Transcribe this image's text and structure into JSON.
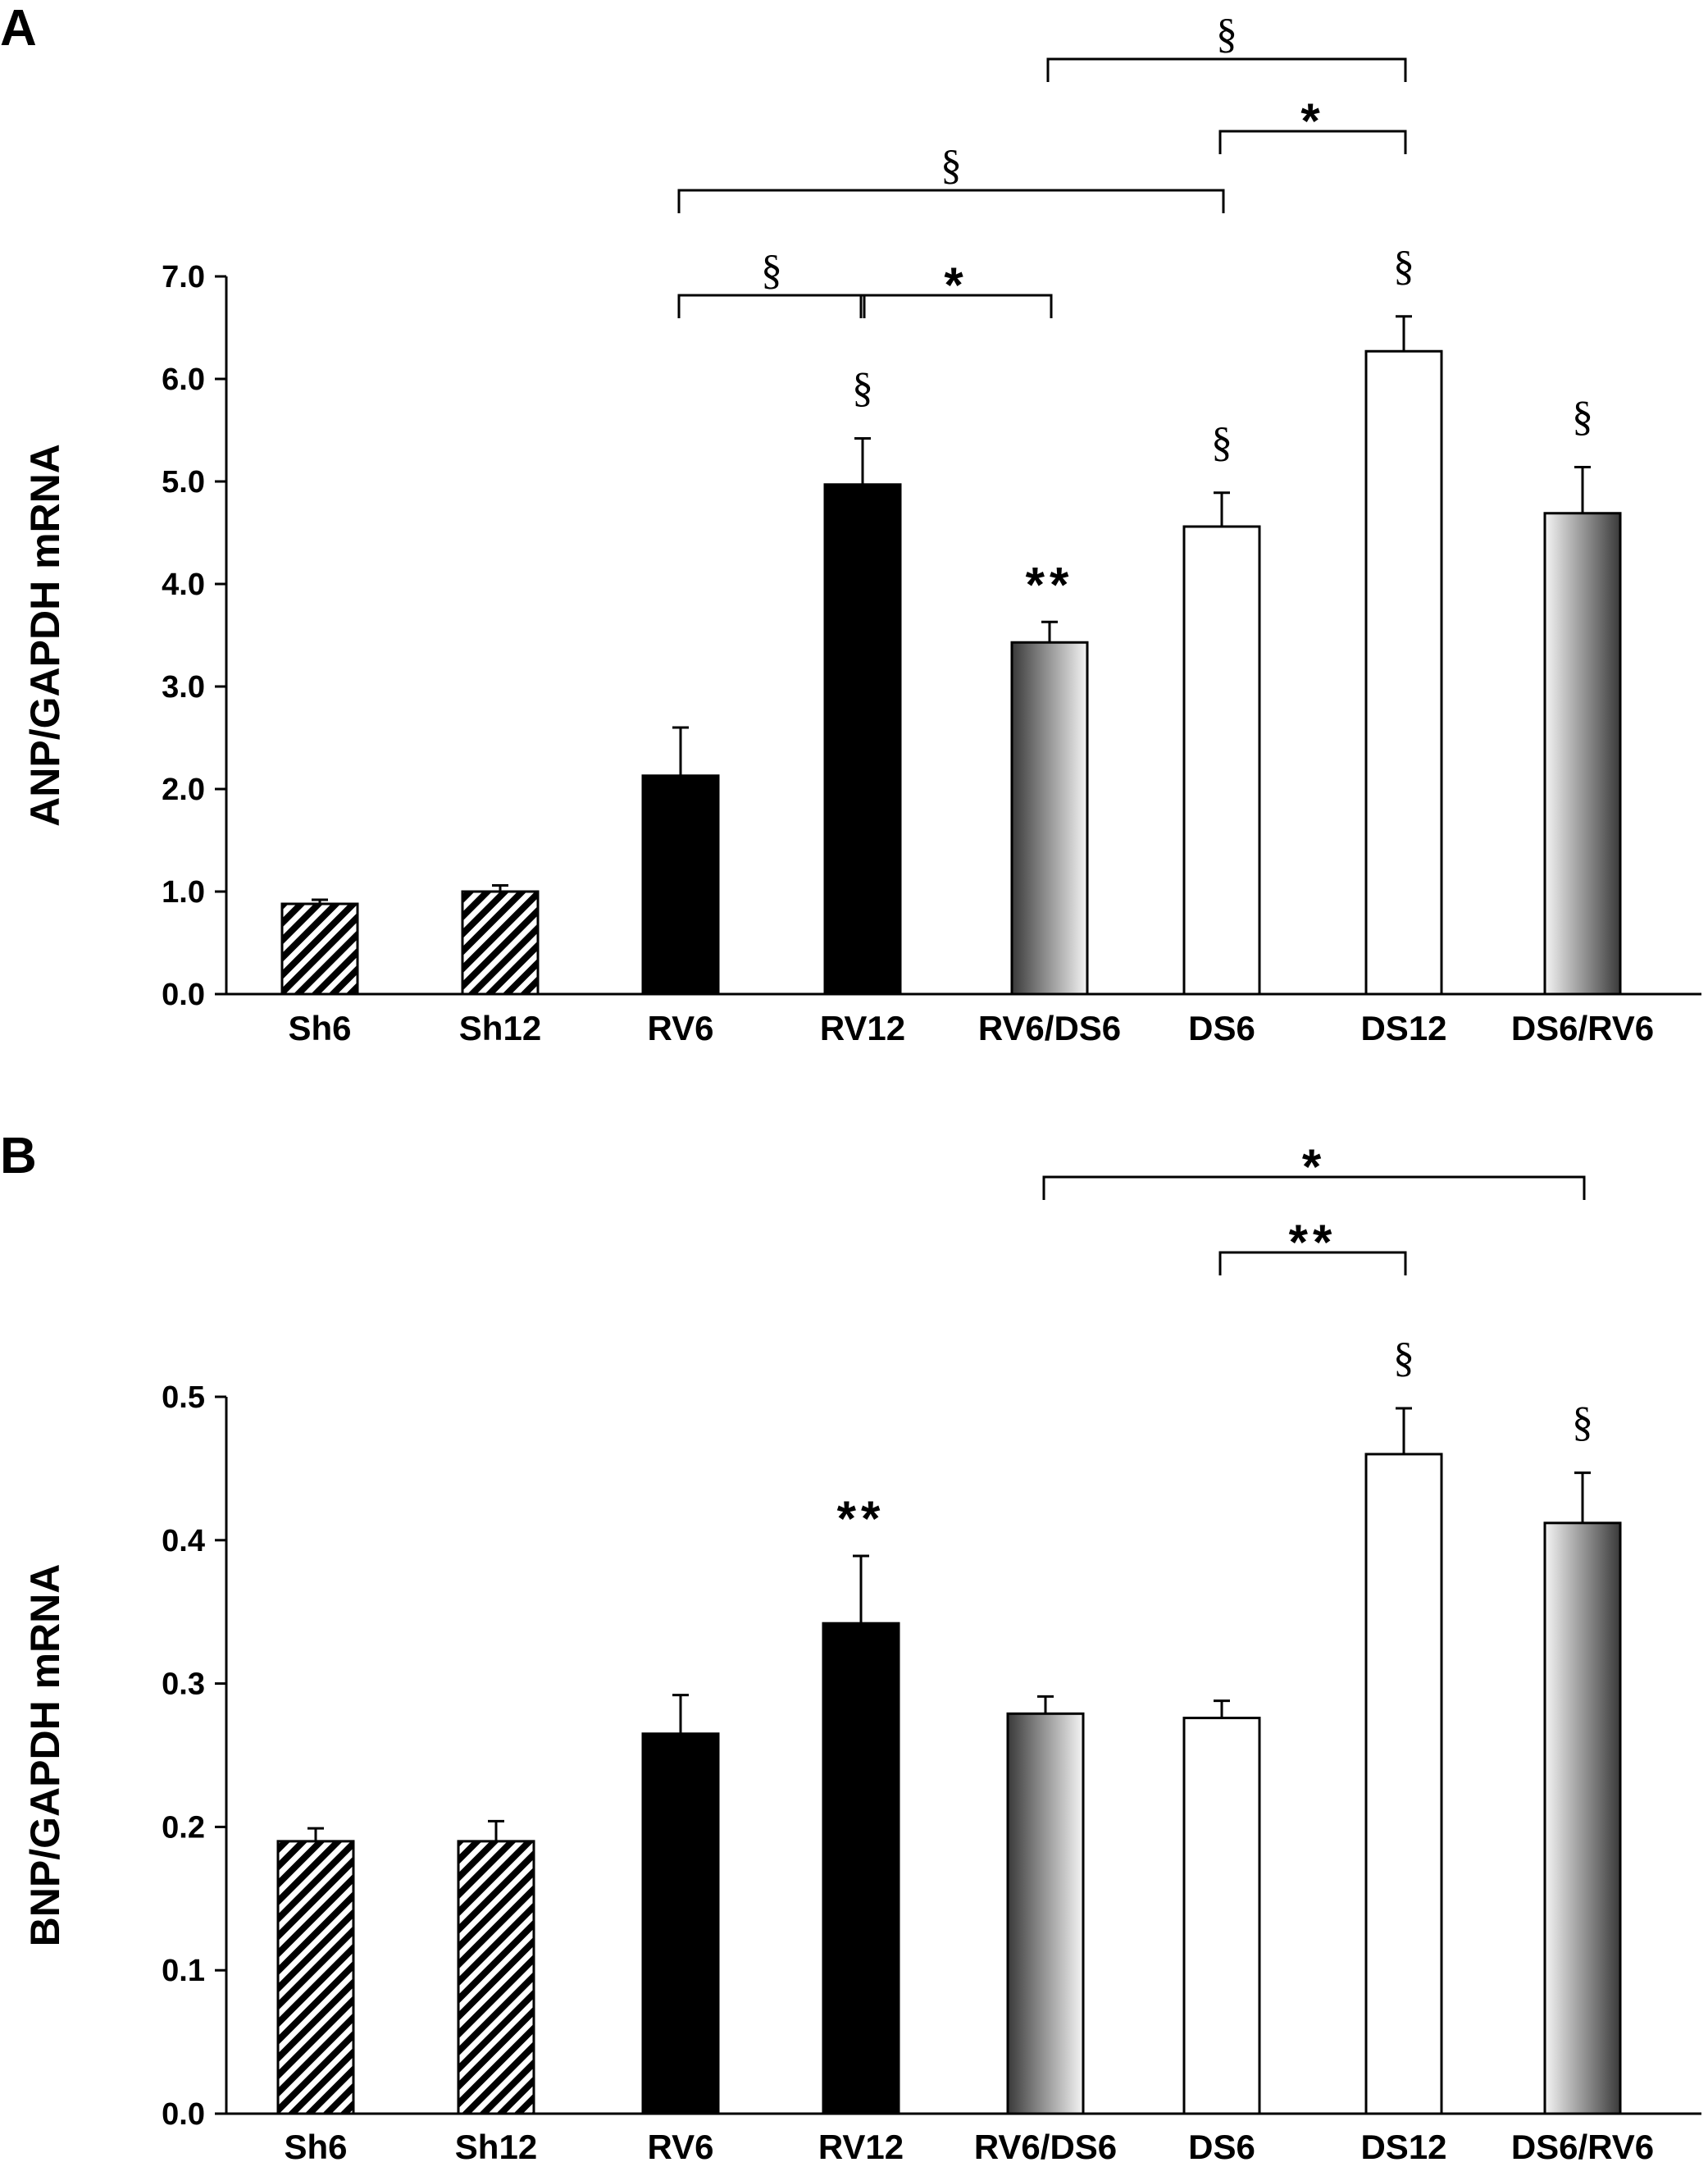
{
  "chart_data": [
    {
      "panel": "A",
      "type": "bar",
      "ylabel": "ANP/GAPDH mRNA",
      "ylim": [
        0,
        7
      ],
      "yticks": [
        "0.0",
        "1.0",
        "2.0",
        "3.0",
        "4.0",
        "5.0",
        "6.0",
        "7.0"
      ],
      "categories": [
        "Sh6",
        "Sh12",
        "RV6",
        "RV12",
        "RV6/DS6",
        "DS6",
        "DS12",
        "DS6/RV6"
      ],
      "fills": [
        "hatch",
        "hatch",
        "black",
        "black",
        "grad-dark-light",
        "white",
        "white",
        "grad-light-dark"
      ],
      "values": [
        0.88,
        1.0,
        2.13,
        4.97,
        3.43,
        4.56,
        6.27,
        4.69
      ],
      "errors": [
        0.04,
        0.06,
        0.47,
        0.45,
        0.2,
        0.33,
        0.34,
        0.45
      ],
      "bar_marks": [
        "",
        "",
        "",
        "§",
        "**",
        "§",
        "§",
        "§"
      ],
      "brackets": [
        {
          "from": 2,
          "to": 3,
          "label": "§"
        },
        {
          "from": 3,
          "to": 4,
          "label": "*"
        },
        {
          "from": 2,
          "to": 5,
          "label": "§"
        },
        {
          "from": 5,
          "to": 6,
          "label": "*"
        },
        {
          "from": 4,
          "to": 6,
          "label": "§"
        }
      ]
    },
    {
      "panel": "B",
      "type": "bar",
      "ylabel": "BNP/GAPDH mRNA",
      "ylim": [
        0,
        0.5
      ],
      "yticks": [
        "0.0",
        "0.1",
        "0.2",
        "0.3",
        "0.4",
        "0.5"
      ],
      "categories": [
        "Sh6",
        "Sh12",
        "RV6",
        "RV12",
        "RV6/DS6",
        "DS6",
        "DS12",
        "DS6/RV6"
      ],
      "fills": [
        "hatch",
        "hatch",
        "black",
        "black",
        "grad-dark-light",
        "white",
        "white",
        "grad-light-dark"
      ],
      "values": [
        0.19,
        0.19,
        0.265,
        0.342,
        0.279,
        0.276,
        0.46,
        0.412
      ],
      "errors": [
        0.009,
        0.014,
        0.027,
        0.047,
        0.012,
        0.012,
        0.032,
        0.035
      ],
      "bar_marks": [
        "",
        "",
        "",
        "**",
        "",
        "",
        "§",
        "§"
      ],
      "brackets": [
        {
          "from": 5,
          "to": 6,
          "label": "**"
        },
        {
          "from": 4,
          "to": 7,
          "label": "*"
        }
      ]
    }
  ]
}
